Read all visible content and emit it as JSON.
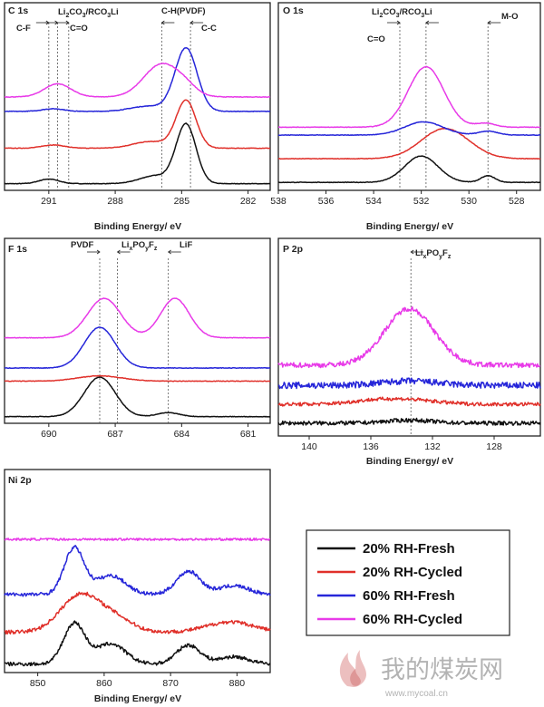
{
  "series_colors": {
    "20% RH-Fresh": "#111111",
    "20% RH-Cycled": "#e0302a",
    "60% RH-Fresh": "#2626d9",
    "60% RH-Cycled": "#e83ae8"
  },
  "legend": {
    "entries": [
      {
        "label": "20% RH-Fresh",
        "color": "#111111"
      },
      {
        "label": "20% RH-Cycled",
        "color": "#e0302a"
      },
      {
        "label": "60% RH-Fresh",
        "color": "#2626d9"
      },
      {
        "label": "60% RH-Cycled",
        "color": "#e83ae8"
      }
    ]
  },
  "watermark": {
    "name": "我的煤炭网",
    "url": "www.mycoal.cn",
    "logo_icon": "flame-logo-icon"
  },
  "chart_data": [
    {
      "type": "line",
      "panel": "C 1s",
      "xlabel": "Binding Energy/ eV",
      "ylabel": "",
      "grid": false,
      "xlim": [
        293,
        281
      ],
      "x_reversed": true,
      "ylim": [
        0,
        10
      ],
      "xticks": [
        291,
        288,
        285,
        282
      ],
      "annotations": [
        {
          "label": "C-F",
          "x": 291.0,
          "arrow": "right"
        },
        {
          "label": "Li2CO3/RCO3Li",
          "x": 290.6,
          "arrow": "right"
        },
        {
          "label": "C=O",
          "x": 290.1,
          "arrow": "right"
        },
        {
          "label": "C-H(PVDF)",
          "x": 285.9,
          "arrow": "left"
        },
        {
          "label": "C-C",
          "x": 284.6,
          "arrow": "left"
        }
      ],
      "series": [
        {
          "name": "20% RH-Fresh",
          "offset": 0.3,
          "peaks": [
            [
              284.8,
              4.5,
              0.45
            ],
            [
              286.2,
              0.6,
              0.7
            ],
            [
              291.0,
              0.35,
              0.45
            ]
          ]
        },
        {
          "name": "20% RH-Cycled",
          "offset": 3.0,
          "peaks": [
            [
              284.8,
              3.6,
              0.45
            ],
            [
              286.4,
              0.5,
              0.8
            ],
            [
              290.8,
              0.25,
              0.5
            ]
          ]
        },
        {
          "name": "60% RH-Fresh",
          "offset": 5.8,
          "peaks": [
            [
              284.8,
              4.8,
              0.5
            ],
            [
              286.5,
              0.4,
              0.8
            ],
            [
              290.8,
              0.2,
              0.5
            ]
          ]
        },
        {
          "name": "60% RH-Cycled",
          "offset": 6.9,
          "peaks": [
            [
              285.9,
              2.5,
              0.8
            ],
            [
              290.6,
              1.0,
              0.6
            ],
            [
              284.8,
              0.5,
              0.5
            ]
          ]
        }
      ]
    },
    {
      "type": "line",
      "panel": "O 1s",
      "xlabel": "Binding Energy/ eV",
      "ylabel": "",
      "grid": false,
      "xlim": [
        538,
        527
      ],
      "x_reversed": true,
      "ylim": [
        0,
        10
      ],
      "xticks": [
        538,
        536,
        534,
        532,
        530,
        528
      ],
      "annotations": [
        {
          "label": "Li2CO3/RCO3Li",
          "x": 531.8,
          "arrow": "left"
        },
        {
          "label": "C=O",
          "x": 532.9,
          "arrow": "right"
        },
        {
          "label": "M-O",
          "x": 529.2,
          "arrow": "left"
        }
      ],
      "series": [
        {
          "name": "20% RH-Fresh",
          "offset": 0.4,
          "peaks": [
            [
              532.0,
              2.0,
              0.7
            ],
            [
              529.2,
              0.5,
              0.3
            ]
          ]
        },
        {
          "name": "20% RH-Cycled",
          "offset": 2.2,
          "peaks": [
            [
              531.0,
              2.3,
              1.0
            ]
          ]
        },
        {
          "name": "60% RH-Fresh",
          "offset": 4.0,
          "peaks": [
            [
              531.9,
              1.0,
              0.8
            ],
            [
              529.2,
              0.3,
              0.4
            ]
          ]
        },
        {
          "name": "60% RH-Cycled",
          "offset": 4.6,
          "peaks": [
            [
              531.8,
              4.6,
              0.75
            ],
            [
              529.3,
              0.3,
              0.4
            ]
          ]
        }
      ]
    },
    {
      "type": "line",
      "panel": "F 1s",
      "xlabel": "",
      "ylabel": "",
      "grid": false,
      "xlim": [
        692,
        680
      ],
      "x_reversed": true,
      "ylim": [
        0,
        10
      ],
      "xticks": [
        690,
        687,
        684,
        681
      ],
      "annotations": [
        {
          "label": "PVDF",
          "x": 687.7,
          "arrow": "right"
        },
        {
          "label": "LixPOyFz",
          "x": 686.9,
          "arrow": "left"
        },
        {
          "label": "LiF",
          "x": 684.6,
          "arrow": "left"
        }
      ],
      "series": [
        {
          "name": "20% RH-Fresh",
          "offset": 0.3,
          "peaks": [
            [
              687.7,
              3.0,
              0.7
            ],
            [
              684.6,
              0.3,
              0.5
            ]
          ]
        },
        {
          "name": "20% RH-Cycled",
          "offset": 3.0,
          "peaks": [
            [
              687.7,
              0.4,
              1.0
            ]
          ]
        },
        {
          "name": "60% RH-Fresh",
          "offset": 4.0,
          "peaks": [
            [
              687.7,
              3.1,
              0.7
            ]
          ]
        },
        {
          "name": "60% RH-Cycled",
          "offset": 6.3,
          "peaks": [
            [
              687.5,
              3.0,
              0.75
            ],
            [
              684.3,
              3.0,
              0.65
            ]
          ]
        }
      ]
    },
    {
      "type": "line",
      "panel": "P 2p",
      "xlabel": "Binding Energy/ eV",
      "ylabel": "",
      "grid": false,
      "xlim": [
        142,
        125
      ],
      "x_reversed": true,
      "ylim": [
        0,
        10
      ],
      "xticks": [
        140,
        136,
        132,
        128
      ],
      "annotations": [
        {
          "label": "LixPOyFz",
          "x": 133.4,
          "arrow": "left"
        }
      ],
      "series": [
        {
          "name": "20% RH-Fresh",
          "offset": 0.7,
          "noise": 0.28,
          "peaks": [
            [
              133.5,
              0.2,
              1.5
            ]
          ]
        },
        {
          "name": "20% RH-Cycled",
          "offset": 2.0,
          "noise": 0.25,
          "peaks": [
            [
              133.5,
              0.3,
              1.8
            ],
            [
              136.0,
              0.2,
              1.5
            ]
          ]
        },
        {
          "name": "60% RH-Fresh",
          "offset": 3.3,
          "noise": 0.45,
          "peaks": [
            [
              133.5,
              0.3,
              1.8
            ]
          ]
        },
        {
          "name": "60% RH-Cycled",
          "offset": 4.7,
          "noise": 0.35,
          "peaks": [
            [
              133.5,
              3.9,
              1.6
            ]
          ]
        }
      ]
    },
    {
      "type": "line",
      "panel": "Ni 2p",
      "xlabel": "Binding Energy/ eV",
      "ylabel": "",
      "grid": false,
      "xlim": [
        845,
        885
      ],
      "x_reversed": false,
      "ylim": [
        0,
        10
      ],
      "xticks": [
        850,
        860,
        870,
        880
      ],
      "annotations": [],
      "series": [
        {
          "name": "20% RH-Fresh",
          "offset": 0.4,
          "noise": 0.25,
          "peaks": [
            [
              855.5,
              2.8,
              1.6
            ],
            [
              861.0,
              1.4,
              2.2
            ],
            [
              872.7,
              1.3,
              1.8
            ],
            [
              879.5,
              0.5,
              2.2
            ]
          ]
        },
        {
          "name": "20% RH-Cycled",
          "offset": 2.6,
          "noise": 0.25,
          "peaks": [
            [
              856.5,
              2.6,
              3.0
            ],
            [
              862.0,
              0.8,
              2.5
            ],
            [
              879.0,
              0.7,
              3.5
            ]
          ]
        },
        {
          "name": "60% RH-Fresh",
          "offset": 5.2,
          "noise": 0.25,
          "peaks": [
            [
              855.5,
              3.2,
              1.5
            ],
            [
              861.0,
              1.3,
              2.2
            ],
            [
              872.7,
              1.6,
              1.8
            ],
            [
              879.5,
              0.6,
              2.2
            ]
          ]
        },
        {
          "name": "60% RH-Cycled",
          "offset": 9.0,
          "noise": 0.15,
          "peaks": []
        }
      ]
    }
  ],
  "panels": [
    {
      "label": "C 1s",
      "xlabel": "Binding Energy/ eV",
      "ticks": [
        "291",
        "288",
        "285",
        "282"
      ]
    },
    {
      "label": "O 1s",
      "xlabel": "Binding Energy/ eV",
      "ticks": [
        "538",
        "536",
        "534",
        "532",
        "530",
        "528"
      ]
    },
    {
      "label": "F 1s",
      "xlabel": "",
      "ticks": [
        "690",
        "687",
        "684",
        "681"
      ]
    },
    {
      "label": "P 2p",
      "xlabel": "Binding Energy/ eV",
      "ticks": [
        "140",
        "136",
        "132",
        "128"
      ]
    },
    {
      "label": "Ni 2p",
      "xlabel": "Binding Energy/ eV",
      "ticks": [
        "850",
        "860",
        "870",
        "880"
      ]
    }
  ],
  "annotation_text": {
    "c_cf": "C-F",
    "c_li2co3_a": "Li",
    "c_li2co3_s1": "2",
    "c_li2co3_b": "CO",
    "c_li2co3_s2": "3",
    "c_li2co3_c": "/RCO",
    "c_li2co3_s3": "3",
    "c_li2co3_d": "Li",
    "c_co": "C=O",
    "c_chpvdf": "C-H(PVDF)",
    "c_cc": "C-C",
    "o_li2co3_a": "Li",
    "o_li2co3_s1": "2",
    "o_li2co3_b": "CO",
    "o_li2co3_s2": "3",
    "o_li2co3_c": "/RCO",
    "o_li2co3_s3": "3",
    "o_li2co3_d": "Li",
    "o_co": "C=O",
    "o_mo": "M-O",
    "f_pvdf": "PVDF",
    "f_lipof_a": "Li",
    "f_lipof_s1": "x",
    "f_lipof_b": "PO",
    "f_lipof_s2": "y",
    "f_lipof_c": "F",
    "f_lipof_s3": "z",
    "f_lif": "LiF",
    "p_lipof_a": "Li",
    "p_lipof_s1": "x",
    "p_lipof_b": "PO",
    "p_lipof_s2": "y",
    "p_lipof_c": "F",
    "p_lipof_s3": "z"
  }
}
